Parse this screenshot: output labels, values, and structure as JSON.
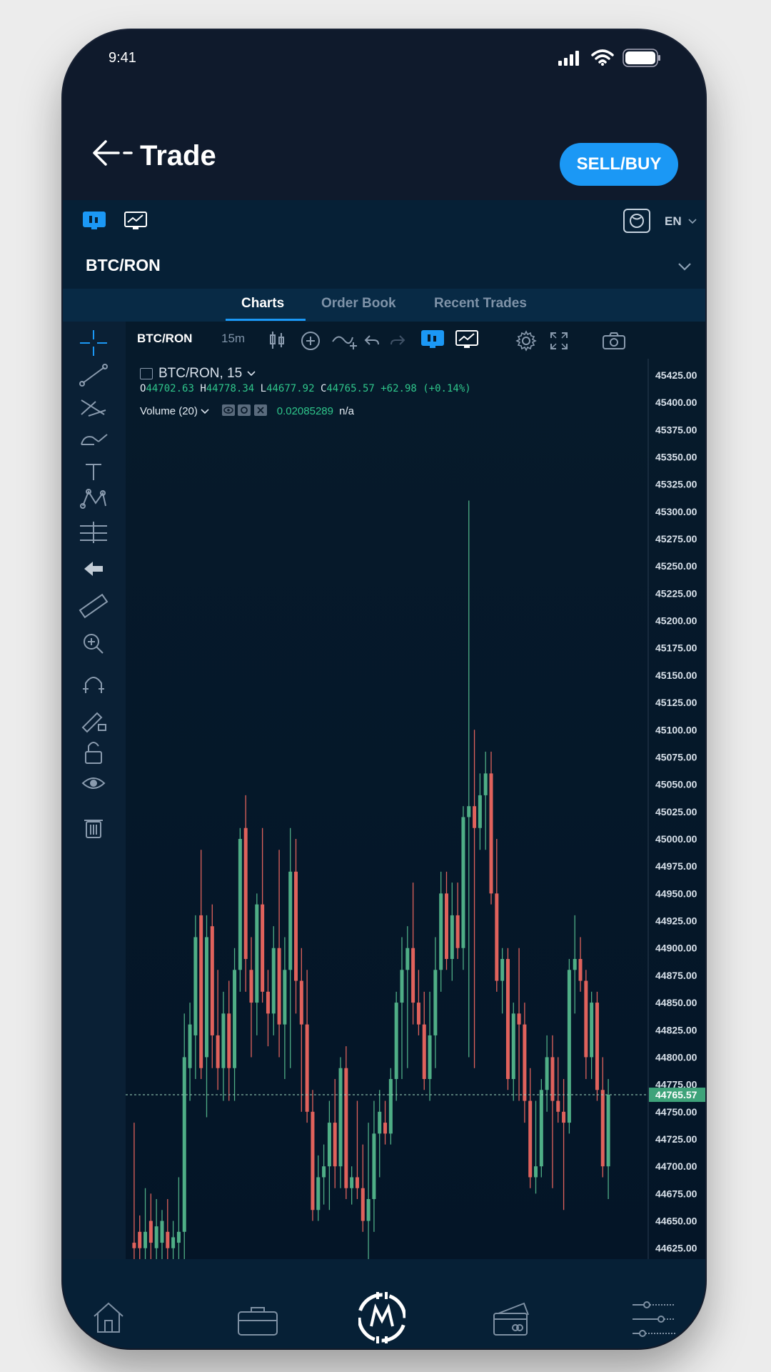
{
  "status": {
    "time": "9:41"
  },
  "header": {
    "title": "Trade",
    "sell_buy_label": "SELL/BUY"
  },
  "toolbar": {
    "language": "EN"
  },
  "pair": {
    "label": "BTC/RON"
  },
  "tabs": [
    {
      "label": "Charts",
      "active": true
    },
    {
      "label": "Order Book",
      "active": false
    },
    {
      "label": "Recent Trades",
      "active": false
    }
  ],
  "chart_toolbar": {
    "symbol": "BTC/RON",
    "interval": "15m"
  },
  "legend": {
    "symbol_line": "BTC/RON, 15",
    "open": "44702.63",
    "high": "44778.34",
    "low": "44677.92",
    "close": "44765.57",
    "change": "+62.98 (+0.14%)",
    "volume_label": "Volume (20)",
    "volume_value": "0.02085289",
    "volume_extra": "n/a"
  },
  "colors": {
    "up": "#4fae86",
    "down": "#e0625c",
    "accent": "#1b98f5"
  },
  "chart_data": {
    "type": "candlestick",
    "ylim": [
      44615,
      45440
    ],
    "price_ticks": [
      45425,
      45400,
      45375,
      45350,
      45325,
      45300,
      45275,
      45250,
      45225,
      45200,
      45175,
      45150,
      45125,
      45100,
      45075,
      45050,
      45025,
      45000,
      44975,
      44950,
      44925,
      44900,
      44875,
      44850,
      44825,
      44800,
      44775,
      44750,
      44725,
      44700,
      44675,
      44650,
      44625
    ],
    "last_price": "44765.57",
    "candles": [
      {
        "o": 44630,
        "h": 44740,
        "l": 44615,
        "c": 44625
      },
      {
        "o": 44640,
        "h": 44655,
        "l": 44615,
        "c": 44625
      },
      {
        "o": 44625,
        "h": 44680,
        "l": 44615,
        "c": 44640
      },
      {
        "o": 44650,
        "h": 44675,
        "l": 44615,
        "c": 44630
      },
      {
        "o": 44625,
        "h": 44670,
        "l": 44615,
        "c": 44645
      },
      {
        "o": 44630,
        "h": 44660,
        "l": 44615,
        "c": 44650
      },
      {
        "o": 44640,
        "h": 44670,
        "l": 44615,
        "c": 44625
      },
      {
        "o": 44625,
        "h": 44650,
        "l": 44615,
        "c": 44635
      },
      {
        "o": 44630,
        "h": 44690,
        "l": 44615,
        "c": 44640
      },
      {
        "o": 44640,
        "h": 44840,
        "l": 44615,
        "c": 44800
      },
      {
        "o": 44790,
        "h": 44850,
        "l": 44760,
        "c": 44830
      },
      {
        "o": 44820,
        "h": 44930,
        "l": 44780,
        "c": 44910
      },
      {
        "o": 44930,
        "h": 44990,
        "l": 44780,
        "c": 44790
      },
      {
        "o": 44800,
        "h": 44930,
        "l": 44745,
        "c": 44910
      },
      {
        "o": 44920,
        "h": 44940,
        "l": 44790,
        "c": 44820
      },
      {
        "o": 44820,
        "h": 44880,
        "l": 44770,
        "c": 44790
      },
      {
        "o": 44790,
        "h": 44860,
        "l": 44760,
        "c": 44840
      },
      {
        "o": 44840,
        "h": 44870,
        "l": 44760,
        "c": 44790
      },
      {
        "o": 44790,
        "h": 44900,
        "l": 44760,
        "c": 44880
      },
      {
        "o": 44880,
        "h": 45010,
        "l": 44860,
        "c": 45000
      },
      {
        "o": 45010,
        "h": 45040,
        "l": 44860,
        "c": 44890
      },
      {
        "o": 44880,
        "h": 44910,
        "l": 44800,
        "c": 44850
      },
      {
        "o": 44850,
        "h": 44950,
        "l": 44820,
        "c": 44940
      },
      {
        "o": 44940,
        "h": 45010,
        "l": 44850,
        "c": 44860
      },
      {
        "o": 44860,
        "h": 44880,
        "l": 44810,
        "c": 44840
      },
      {
        "o": 44840,
        "h": 44920,
        "l": 44820,
        "c": 44900
      },
      {
        "o": 44900,
        "h": 44990,
        "l": 44800,
        "c": 44830
      },
      {
        "o": 44830,
        "h": 44910,
        "l": 44780,
        "c": 44880
      },
      {
        "o": 44880,
        "h": 45010,
        "l": 44790,
        "c": 44970
      },
      {
        "o": 44970,
        "h": 45000,
        "l": 44840,
        "c": 44870
      },
      {
        "o": 44870,
        "h": 44900,
        "l": 44750,
        "c": 44830
      },
      {
        "o": 44830,
        "h": 44880,
        "l": 44740,
        "c": 44750
      },
      {
        "o": 44750,
        "h": 44770,
        "l": 44650,
        "c": 44660
      },
      {
        "o": 44660,
        "h": 44710,
        "l": 44650,
        "c": 44690
      },
      {
        "o": 44690,
        "h": 44720,
        "l": 44665,
        "c": 44700
      },
      {
        "o": 44700,
        "h": 44760,
        "l": 44660,
        "c": 44740
      },
      {
        "o": 44740,
        "h": 44780,
        "l": 44680,
        "c": 44700
      },
      {
        "o": 44700,
        "h": 44800,
        "l": 44680,
        "c": 44790
      },
      {
        "o": 44790,
        "h": 44810,
        "l": 44670,
        "c": 44680
      },
      {
        "o": 44680,
        "h": 44700,
        "l": 44665,
        "c": 44690
      },
      {
        "o": 44690,
        "h": 44760,
        "l": 44670,
        "c": 44680
      },
      {
        "o": 44680,
        "h": 44720,
        "l": 44640,
        "c": 44650
      },
      {
        "o": 44650,
        "h": 44740,
        "l": 44615,
        "c": 44670
      },
      {
        "o": 44670,
        "h": 44760,
        "l": 44640,
        "c": 44730
      },
      {
        "o": 44730,
        "h": 44770,
        "l": 44690,
        "c": 44750
      },
      {
        "o": 44740,
        "h": 44760,
        "l": 44720,
        "c": 44730
      },
      {
        "o": 44730,
        "h": 44790,
        "l": 44720,
        "c": 44780
      },
      {
        "o": 44780,
        "h": 44860,
        "l": 44760,
        "c": 44850
      },
      {
        "o": 44850,
        "h": 44910,
        "l": 44780,
        "c": 44880
      },
      {
        "o": 44880,
        "h": 44920,
        "l": 44790,
        "c": 44900
      },
      {
        "o": 44900,
        "h": 44960,
        "l": 44830,
        "c": 44850
      },
      {
        "o": 44850,
        "h": 44880,
        "l": 44820,
        "c": 44830
      },
      {
        "o": 44830,
        "h": 44860,
        "l": 44770,
        "c": 44780
      },
      {
        "o": 44780,
        "h": 44860,
        "l": 44760,
        "c": 44820
      },
      {
        "o": 44820,
        "h": 44910,
        "l": 44790,
        "c": 44880
      },
      {
        "o": 44880,
        "h": 44970,
        "l": 44860,
        "c": 44950
      },
      {
        "o": 44950,
        "h": 44970,
        "l": 44880,
        "c": 44890
      },
      {
        "o": 44890,
        "h": 44960,
        "l": 44870,
        "c": 44930
      },
      {
        "o": 44930,
        "h": 44960,
        "l": 44890,
        "c": 44900
      },
      {
        "o": 44900,
        "h": 45030,
        "l": 44880,
        "c": 45020
      },
      {
        "o": 45020,
        "h": 45310,
        "l": 44800,
        "c": 45030
      },
      {
        "o": 45030,
        "h": 45100,
        "l": 44790,
        "c": 45010
      },
      {
        "o": 45010,
        "h": 45060,
        "l": 44990,
        "c": 45040
      },
      {
        "o": 45040,
        "h": 45080,
        "l": 44990,
        "c": 45060
      },
      {
        "o": 45060,
        "h": 45080,
        "l": 44940,
        "c": 44950
      },
      {
        "o": 44950,
        "h": 45000,
        "l": 44860,
        "c": 44870
      },
      {
        "o": 44870,
        "h": 44900,
        "l": 44840,
        "c": 44890
      },
      {
        "o": 44890,
        "h": 44900,
        "l": 44770,
        "c": 44780
      },
      {
        "o": 44780,
        "h": 44850,
        "l": 44760,
        "c": 44840
      },
      {
        "o": 44840,
        "h": 44900,
        "l": 44760,
        "c": 44830
      },
      {
        "o": 44830,
        "h": 44850,
        "l": 44740,
        "c": 44760
      },
      {
        "o": 44760,
        "h": 44790,
        "l": 44680,
        "c": 44690
      },
      {
        "o": 44690,
        "h": 44760,
        "l": 44675,
        "c": 44700
      },
      {
        "o": 44700,
        "h": 44780,
        "l": 44690,
        "c": 44770
      },
      {
        "o": 44770,
        "h": 44820,
        "l": 44750,
        "c": 44800
      },
      {
        "o": 44800,
        "h": 44820,
        "l": 44680,
        "c": 44760
      },
      {
        "o": 44760,
        "h": 44800,
        "l": 44740,
        "c": 44750
      },
      {
        "o": 44750,
        "h": 44780,
        "l": 44660,
        "c": 44740
      },
      {
        "o": 44740,
        "h": 44890,
        "l": 44730,
        "c": 44880
      },
      {
        "o": 44880,
        "h": 44930,
        "l": 44840,
        "c": 44890
      },
      {
        "o": 44890,
        "h": 44910,
        "l": 44860,
        "c": 44870
      },
      {
        "o": 44870,
        "h": 44880,
        "l": 44780,
        "c": 44800
      },
      {
        "o": 44800,
        "h": 44860,
        "l": 44780,
        "c": 44850
      },
      {
        "o": 44850,
        "h": 44860,
        "l": 44760,
        "c": 44770
      },
      {
        "o": 44770,
        "h": 44800,
        "l": 44690,
        "c": 44700
      },
      {
        "o": 44700,
        "h": 44780,
        "l": 44670,
        "c": 44765.57
      }
    ]
  },
  "bottom_nav": [
    {
      "icon": "home-icon"
    },
    {
      "icon": "briefcase-icon"
    },
    {
      "icon": "logo-icon"
    },
    {
      "icon": "wallet-icon"
    },
    {
      "icon": "sliders-icon"
    }
  ]
}
